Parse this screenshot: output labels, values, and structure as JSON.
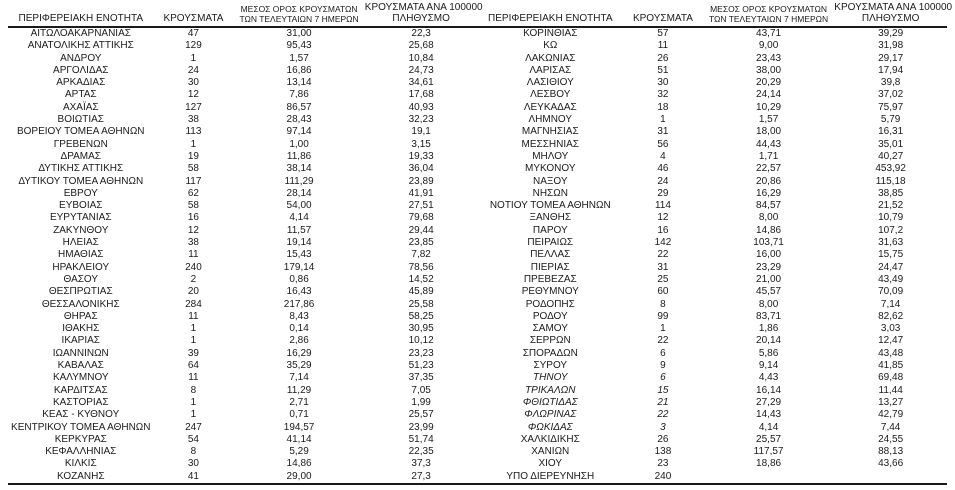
{
  "page": {
    "background": "#ffffff",
    "text_color": "#1b1b1b",
    "line_color": "#1a1a1a"
  },
  "columns": {
    "region": "ΠΕΡΙΦΕΡΕΙΑΚΗ ΕΝΟΤΗΤΑ",
    "cases": "ΚΡΟΥΣΜΑΤΑ",
    "avg7_line1": "ΜΕΣΟΣ ΟΡΟΣ ΚΡΟΥΣΜΑΤΩΝ",
    "avg7_line2": "ΤΩΝ ΤΕΛΕΥΤΑΙΩΝ 7 ΗΜΕΡΩΝ",
    "per100k_line1": "ΚΡΟΥΣΜΑΤΑ ΑΝΑ 100000",
    "per100k_line2": "ΠΛΗΘΥΣΜΟ"
  },
  "tables": [
    {
      "id": "left",
      "rows": [
        {
          "region": "ΑΙΤΩΛΟΑΚΑΡΝΑΝΙΑΣ",
          "cases": "47",
          "avg7": "31,00",
          "per100k": "22,3"
        },
        {
          "region": "ΑΝΑΤΟΛΙΚΗΣ ΑΤΤΙΚΗΣ",
          "cases": "129",
          "avg7": "95,43",
          "per100k": "25,68"
        },
        {
          "region": "ΑΝΔΡΟΥ",
          "cases": "1",
          "avg7": "1,57",
          "per100k": "10,84"
        },
        {
          "region": "ΑΡΓΟΛΙΔΑΣ",
          "cases": "24",
          "avg7": "16,86",
          "per100k": "24,73"
        },
        {
          "region": "ΑΡΚΑΔΙΑΣ",
          "cases": "30",
          "avg7": "13,14",
          "per100k": "34,61"
        },
        {
          "region": "ΑΡΤΑΣ",
          "cases": "12",
          "avg7": "7,86",
          "per100k": "17,68"
        },
        {
          "region": "ΑΧΑΪΑΣ",
          "cases": "127",
          "avg7": "86,57",
          "per100k": "40,93"
        },
        {
          "region": "ΒΟΙΩΤΙΑΣ",
          "cases": "38",
          "avg7": "28,43",
          "per100k": "32,23"
        },
        {
          "region": "ΒΟΡΕΙΟΥ ΤΟΜΕΑ ΑΘΗΝΩΝ",
          "cases": "113",
          "avg7": "97,14",
          "per100k": "19,1"
        },
        {
          "region": "ΓΡΕΒΕΝΩΝ",
          "cases": "1",
          "avg7": "1,00",
          "per100k": "3,15"
        },
        {
          "region": "ΔΡΑΜΑΣ",
          "cases": "19",
          "avg7": "11,86",
          "per100k": "19,33"
        },
        {
          "region": "ΔΥΤΙΚΗΣ ΑΤΤΙΚΗΣ",
          "cases": "58",
          "avg7": "38,14",
          "per100k": "36,04"
        },
        {
          "region": "ΔΥΤΙΚΟΥ ΤΟΜΕΑ ΑΘΗΝΩΝ",
          "cases": "117",
          "avg7": "111,29",
          "per100k": "23,89"
        },
        {
          "region": "ΕΒΡΟΥ",
          "cases": "62",
          "avg7": "28,14",
          "per100k": "41,91"
        },
        {
          "region": "ΕΥΒΟΙΑΣ",
          "cases": "58",
          "avg7": "54,00",
          "per100k": "27,51"
        },
        {
          "region": "ΕΥΡΥΤΑΝΙΑΣ",
          "cases": "16",
          "avg7": "4,14",
          "per100k": "79,68"
        },
        {
          "region": "ΖΑΚΥΝΘΟΥ",
          "cases": "12",
          "avg7": "11,57",
          "per100k": "29,44"
        },
        {
          "region": "ΗΛΕΙΑΣ",
          "cases": "38",
          "avg7": "19,14",
          "per100k": "23,85"
        },
        {
          "region": "ΗΜΑΘΙΑΣ",
          "cases": "11",
          "avg7": "15,43",
          "per100k": "7,82"
        },
        {
          "region": "ΗΡΑΚΛΕΙΟΥ",
          "cases": "240",
          "avg7": "179,14",
          "per100k": "78,56"
        },
        {
          "region": "ΘΑΣΟΥ",
          "cases": "2",
          "avg7": "0,86",
          "per100k": "14,52"
        },
        {
          "region": "ΘΕΣΠΡΩΤΙΑΣ",
          "cases": "20",
          "avg7": "16,43",
          "per100k": "45,89"
        },
        {
          "region": "ΘΕΣΣΑΛΟΝΙΚΗΣ",
          "cases": "284",
          "avg7": "217,86",
          "per100k": "25,58"
        },
        {
          "region": "ΘΗΡΑΣ",
          "cases": "11",
          "avg7": "8,43",
          "per100k": "58,25"
        },
        {
          "region": "ΙΘΑΚΗΣ",
          "cases": "1",
          "avg7": "0,14",
          "per100k": "30,95"
        },
        {
          "region": "ΙΚΑΡΙΑΣ",
          "cases": "1",
          "avg7": "2,86",
          "per100k": "10,12"
        },
        {
          "region": "ΙΩΑΝΝΙΝΩΝ",
          "cases": "39",
          "avg7": "16,29",
          "per100k": "23,23"
        },
        {
          "region": "ΚΑΒΑΛΑΣ",
          "cases": "64",
          "avg7": "35,29",
          "per100k": "51,23"
        },
        {
          "region": "ΚΑΛΥΜΝΟΥ",
          "cases": "11",
          "avg7": "7,14",
          "per100k": "37,35"
        },
        {
          "region": "ΚΑΡΔΙΤΣΑΣ",
          "cases": "8",
          "avg7": "11,29",
          "per100k": "7,05"
        },
        {
          "region": "ΚΑΣΤΟΡΙΑΣ",
          "cases": "1",
          "avg7": "2,71",
          "per100k": "1,99"
        },
        {
          "region": "ΚΕΑΣ - ΚΥΘΝΟΥ",
          "cases": "1",
          "avg7": "0,71",
          "per100k": "25,57"
        },
        {
          "region": "ΚΕΝΤΡΙΚΟΥ ΤΟΜΕΑ ΑΘΗΝΩΝ",
          "cases": "247",
          "avg7": "194,57",
          "per100k": "23,99"
        },
        {
          "region": "ΚΕΡΚΥΡΑΣ",
          "cases": "54",
          "avg7": "41,14",
          "per100k": "51,74"
        },
        {
          "region": "ΚΕΦΑΛΛΗΝΙΑΣ",
          "cases": "8",
          "avg7": "5,29",
          "per100k": "22,35"
        },
        {
          "region": "ΚΙΛΚΙΣ",
          "cases": "30",
          "avg7": "14,86",
          "per100k": "37,3"
        },
        {
          "region": "ΚΟΖΑΝΗΣ",
          "cases": "41",
          "avg7": "29,00",
          "per100k": "27,3"
        }
      ]
    },
    {
      "id": "right",
      "rows": [
        {
          "region": "ΚΟΡΙΝΘΙΑΣ",
          "cases": "57",
          "avg7": "43,71",
          "per100k": "39,29"
        },
        {
          "region": "ΚΩ",
          "cases": "11",
          "avg7": "9,00",
          "per100k": "31,98"
        },
        {
          "region": "ΛΑΚΩΝΙΑΣ",
          "cases": "26",
          "avg7": "23,43",
          "per100k": "29,17"
        },
        {
          "region": "ΛΑΡΙΣΑΣ",
          "cases": "51",
          "avg7": "38,00",
          "per100k": "17,94"
        },
        {
          "region": "ΛΑΣΙΘΙΟΥ",
          "cases": "30",
          "avg7": "20,29",
          "per100k": "39,8"
        },
        {
          "region": "ΛΕΣΒΟΥ",
          "cases": "32",
          "avg7": "24,14",
          "per100k": "37,02"
        },
        {
          "region": "ΛΕΥΚΑΔΑΣ",
          "cases": "18",
          "avg7": "10,29",
          "per100k": "75,97"
        },
        {
          "region": "ΛΗΜΝΟΥ",
          "cases": "1",
          "avg7": "1,57",
          "per100k": "5,79"
        },
        {
          "region": "ΜΑΓΝΗΣΙΑΣ",
          "cases": "31",
          "avg7": "18,00",
          "per100k": "16,31"
        },
        {
          "region": "ΜΕΣΣΗΝΙΑΣ",
          "cases": "56",
          "avg7": "44,43",
          "per100k": "35,01"
        },
        {
          "region": "ΜΗΛΟΥ",
          "cases": "4",
          "avg7": "1,71",
          "per100k": "40,27"
        },
        {
          "region": "ΜΥΚΟΝΟΥ",
          "cases": "46",
          "avg7": "22,57",
          "per100k": "453,92"
        },
        {
          "region": "ΝΑΞΟΥ",
          "cases": "24",
          "avg7": "20,86",
          "per100k": "115,18"
        },
        {
          "region": "ΝΗΣΩΝ",
          "cases": "29",
          "avg7": "16,29",
          "per100k": "38,85"
        },
        {
          "region": "ΝΟΤΙΟΥ ΤΟΜΕΑ ΑΘΗΝΩΝ",
          "cases": "114",
          "avg7": "84,57",
          "per100k": "21,52"
        },
        {
          "region": "ΞΑΝΘΗΣ",
          "cases": "12",
          "avg7": "8,00",
          "per100k": "10,79"
        },
        {
          "region": "ΠΑΡΟΥ",
          "cases": "16",
          "avg7": "14,86",
          "per100k": "107,2"
        },
        {
          "region": "ΠΕΙΡΑΙΩΣ",
          "cases": "142",
          "avg7": "103,71",
          "per100k": "31,63"
        },
        {
          "region": "ΠΕΛΛΑΣ",
          "cases": "22",
          "avg7": "16,00",
          "per100k": "15,75"
        },
        {
          "region": "ΠΙΕΡΙΑΣ",
          "cases": "31",
          "avg7": "23,29",
          "per100k": "24,47"
        },
        {
          "region": "ΠΡΕΒΕΖΑΣ",
          "cases": "25",
          "avg7": "21,00",
          "per100k": "43,49"
        },
        {
          "region": "ΡΕΘΥΜΝΟΥ",
          "cases": "60",
          "avg7": "45,57",
          "per100k": "70,09"
        },
        {
          "region": "ΡΟΔΟΠΗΣ",
          "cases": "8",
          "avg7": "8,00",
          "per100k": "7,14"
        },
        {
          "region": "ΡΟΔΟΥ",
          "cases": "99",
          "avg7": "83,71",
          "per100k": "82,62"
        },
        {
          "region": "ΣΑΜΟΥ",
          "cases": "1",
          "avg7": "1,86",
          "per100k": "3,03"
        },
        {
          "region": "ΣΕΡΡΩΝ",
          "cases": "22",
          "avg7": "20,14",
          "per100k": "12,47"
        },
        {
          "region": "ΣΠΟΡΑΔΩΝ",
          "cases": "6",
          "avg7": "5,86",
          "per100k": "43,48"
        },
        {
          "region": "ΣΥΡΟΥ",
          "cases": "9",
          "avg7": "9,14",
          "per100k": "41,85"
        },
        {
          "region": "ΤΗΝΟΥ",
          "cases": "6",
          "avg7": "4,43",
          "per100k": "69,48",
          "italic": true
        },
        {
          "region": "ΤΡΙΚΑΛΩΝ",
          "cases": "15",
          "avg7": "16,14",
          "per100k": "11,44",
          "italic": true
        },
        {
          "region": "ΦΘΙΩΤΙΔΑΣ",
          "cases": "21",
          "avg7": "27,29",
          "per100k": "13,27",
          "italic": true
        },
        {
          "region": "ΦΛΩΡΙΝΑΣ",
          "cases": "22",
          "avg7": "14,43",
          "per100k": "42,79",
          "italic": true
        },
        {
          "region": "ΦΩΚΙΔΑΣ",
          "cases": "3",
          "avg7": "4,14",
          "per100k": "7,44",
          "italic": true
        },
        {
          "region": "ΧΑΛΚΙΔΙΚΗΣ",
          "cases": "26",
          "avg7": "25,57",
          "per100k": "24,55"
        },
        {
          "region": "ΧΑΝΙΩΝ",
          "cases": "138",
          "avg7": "117,57",
          "per100k": "88,13"
        },
        {
          "region": "ΧΙΟΥ",
          "cases": "23",
          "avg7": "18,86",
          "per100k": "43,66"
        },
        {
          "region": "ΥΠΟ ΔΙΕΡΕΥΝΗΣΗ",
          "cases": "240",
          "avg7": "",
          "per100k": ""
        }
      ]
    }
  ]
}
